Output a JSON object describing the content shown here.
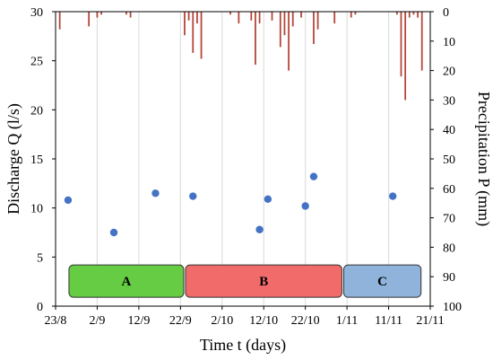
{
  "chart_data": {
    "type": "scatter",
    "xlabel": "Time t (days)",
    "ylabel_left": "Discharge Q (l/s)",
    "ylabel_right": "Precipitation P (mm)",
    "x_ticks": [
      "23/8",
      "2/9",
      "12/9",
      "22/9",
      "2/10",
      "12/10",
      "22/10",
      "1/11",
      "11/11",
      "21/11"
    ],
    "x_range_days": [
      0,
      90
    ],
    "ylim_left": [
      0,
      30
    ],
    "y_ticks_left": [
      0,
      5,
      10,
      15,
      20,
      25,
      30
    ],
    "ylim_right_inverted": [
      0,
      100
    ],
    "y_ticks_right": [
      0,
      10,
      20,
      30,
      40,
      50,
      60,
      70,
      80,
      90,
      100
    ],
    "grid": "vertical",
    "colors": {
      "discharge": "#4472c4",
      "precipitation": "#b5473a",
      "grid": "#d9d9d9",
      "period_A": "#66cc44",
      "period_B": "#f26b6b",
      "period_C": "#8fb3db"
    },
    "series": [
      {
        "kind": "discharge",
        "x": [
          "26/8",
          "6/9",
          "16/9",
          "25/9",
          "11/10",
          "13/10",
          "22/10",
          "24/10",
          "12/11"
        ],
        "y": [
          10.8,
          7.5,
          11.5,
          11.2,
          7.8,
          10.9,
          10.2,
          13.2,
          11.2
        ]
      },
      {
        "kind": "precipitation",
        "x": [
          "24/8",
          "31/8",
          "2/9",
          "3/9",
          "9/9",
          "10/9",
          "23/9",
          "24/9",
          "25/9",
          "26/9",
          "27/9",
          "4/10",
          "6/10",
          "9/10",
          "10/10",
          "11/10",
          "14/10",
          "16/10",
          "17/10",
          "18/10",
          "19/10",
          "21/10",
          "24/10",
          "25/10",
          "29/10",
          "2/11",
          "3/11",
          "13/11",
          "14/11",
          "15/11",
          "16/11",
          "17/11",
          "18/11",
          "19/11"
        ],
        "y": [
          6,
          5,
          2,
          1,
          1,
          2,
          8,
          3,
          14,
          4,
          16,
          1,
          4,
          3,
          18,
          4,
          3,
          12,
          8,
          20,
          5,
          2,
          11,
          6,
          4,
          2,
          1,
          1,
          22,
          30,
          2,
          1,
          2,
          20
        ]
      }
    ],
    "periods": [
      {
        "label": "A",
        "start": "26/8",
        "end": "23/9"
      },
      {
        "label": "B",
        "start": "23/9",
        "end": "31/10"
      },
      {
        "label": "C",
        "start": "31/10",
        "end": "19/11"
      }
    ]
  }
}
